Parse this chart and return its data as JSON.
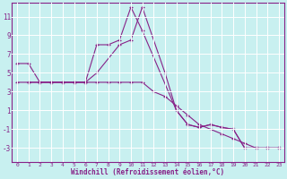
{
  "xlabel": "Windchill (Refroidissement éolien,°C)",
  "bg_color": "#c8f0f0",
  "line_color": "#882288",
  "grid_color": "#ffffff",
  "xlim": [
    -0.5,
    23.5
  ],
  "ylim": [
    -4.5,
    12.5
  ],
  "xticks": [
    0,
    1,
    2,
    3,
    4,
    5,
    6,
    7,
    8,
    9,
    10,
    11,
    12,
    13,
    14,
    15,
    16,
    17,
    18,
    19,
    20,
    21,
    22,
    23
  ],
  "yticks": [
    -3,
    -1,
    1,
    3,
    5,
    7,
    9,
    11
  ],
  "series": [
    {
      "x": [
        0,
        1,
        2,
        3,
        4,
        5,
        6,
        7,
        8,
        9,
        10,
        11,
        14,
        15,
        16,
        17,
        18,
        19,
        20,
        21,
        22,
        23
      ],
      "y": [
        6,
        6,
        4,
        4,
        4,
        4,
        4,
        8,
        8,
        8.5,
        12,
        9.5,
        1,
        -0.5,
        -0.8,
        -0.5,
        -0.8,
        -1,
        -3,
        -3,
        -3,
        -3
      ]
    },
    {
      "x": [
        1,
        2,
        3,
        4,
        5,
        6,
        7,
        9,
        10,
        11,
        13,
        14,
        15,
        16,
        17,
        18,
        19,
        20,
        21,
        22,
        23
      ],
      "y": [
        4,
        4,
        4,
        4,
        4,
        4,
        5,
        8,
        8.5,
        12,
        5,
        1,
        -0.5,
        -0.8,
        -0.5,
        -0.8,
        -1,
        -3,
        -3,
        -3,
        -3
      ]
    },
    {
      "x": [
        0,
        1,
        2,
        3,
        4,
        5,
        6,
        7,
        8,
        9,
        10,
        11,
        12,
        13,
        14,
        15,
        16,
        17,
        18,
        19,
        20,
        21,
        22,
        23
      ],
      "y": [
        4,
        4,
        4,
        4,
        4,
        4,
        4,
        4,
        4,
        4,
        4,
        4,
        3,
        2.5,
        1.5,
        0.5,
        -0.5,
        -1,
        -1.5,
        -2,
        -2.5,
        -3,
        -3,
        -3
      ]
    }
  ]
}
